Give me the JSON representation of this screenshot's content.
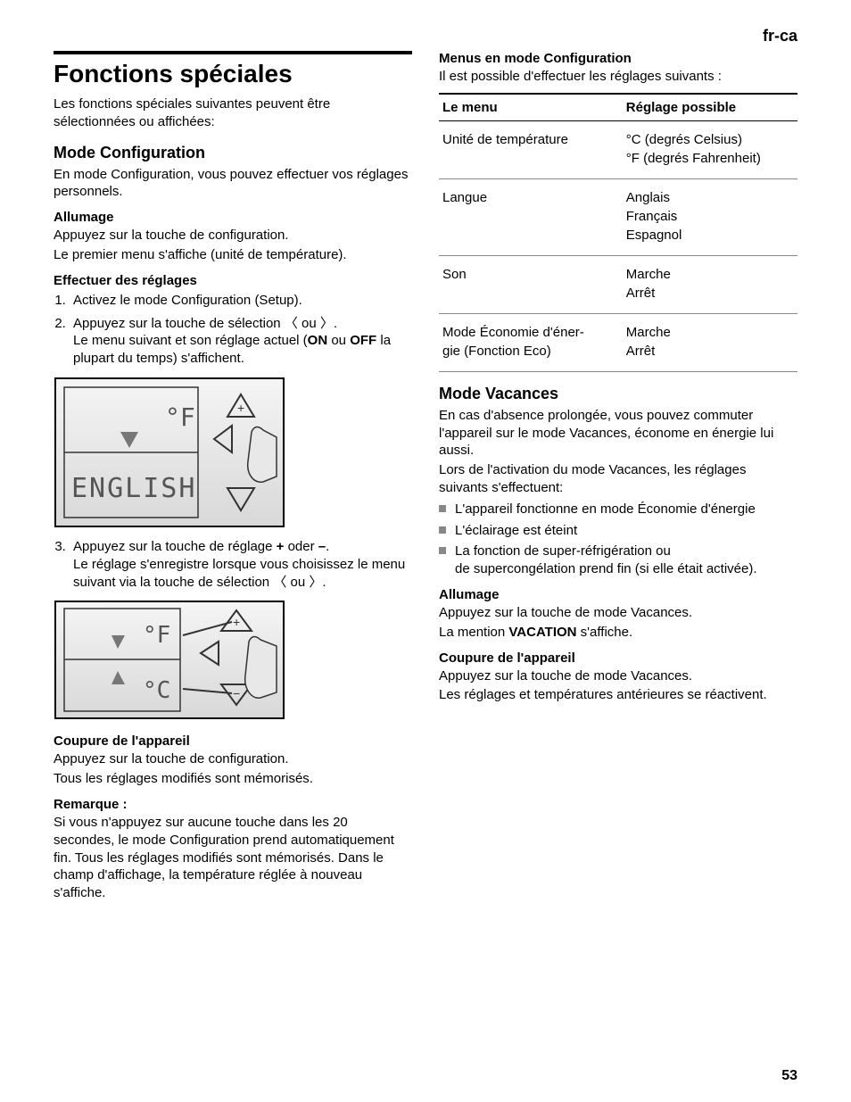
{
  "locale": "fr-ca",
  "pagenum": "53",
  "left": {
    "title": "Fonctions spéciales",
    "intro": "Les fonctions spéciales suivantes peuvent être sélectionnées ou affichées:",
    "mode_config": {
      "heading": "Mode Configuration",
      "text": "En mode Configuration, vous pouvez effectuer vos réglages personnels.",
      "allumage_h": "Allumage",
      "allumage_1": "Appuyez sur la touche de configuration.",
      "allumage_2": "Le premier menu s'affiche (unité de température).",
      "effectuer_h": "Effectuer des réglages",
      "step1": "Activez le mode Configuration (Setup).",
      "step2_a": "Appuyez sur la touche de sélection ",
      "step2_b": " ou ",
      "step2_c": ".",
      "step2_d": "Le menu suivant et son réglage actuel (",
      "step2_on": "ON",
      "step2_or": " ou ",
      "step2_off": "OFF",
      "step2_e": " la plupart du temps) s'affichent.",
      "step3_a": "Appuyez sur la touche de réglage ",
      "step3_plus": "+",
      "step3_oder": " oder ",
      "step3_minus": "–",
      "step3_b": ".",
      "step3_c": "Le réglage s'enregistre lorsque vous choisissez le menu suivant via la touche de sélection ",
      "step3_d": " ou ",
      "step3_e": ".",
      "coupure_h": "Coupure de l'appareil",
      "coupure_1": "Appuyez sur la touche de configuration.",
      "coupure_2": "Tous les réglages modifiés sont mémorisés.",
      "remarque_h": "Remarque :",
      "remarque": "Si vous n'appuyez sur aucune touche dans les 20 secondes, le mode Configuration prend automatiquement fin. Tous les réglages modifiés sont mémorisés. Dans le champ d'affichage, la température réglée à nouveau s'affiche."
    },
    "figure1": {
      "lcd_text": "ENGLISH",
      "small": "°F"
    },
    "figure2": {
      "top": "°F",
      "bottom": "°C"
    }
  },
  "right": {
    "menus_h": "Menus en mode Configuration",
    "menus_text": "Il est possible d'effectuer les réglages suivants :",
    "table": {
      "col_menu": "Le menu",
      "col_setting": "Réglage possible",
      "rows": [
        {
          "menu": "Unité de température",
          "settings": "°C (degrés Celsius)\n°F (degrés Fahrenheit)"
        },
        {
          "menu": "Langue",
          "settings": "Anglais\nFrançais\nEspagnol"
        },
        {
          "menu": "Son",
          "settings": "Marche\nArrêt"
        },
        {
          "menu": "Mode Économie d'éner-\ngie (Fonction Eco)",
          "settings": "Marche\nArrêt"
        }
      ]
    },
    "vacances": {
      "heading": "Mode Vacances",
      "p1": "En cas d'absence prolongée, vous pouvez commuter l'appareil sur le mode Vacances, économe en énergie lui aussi.",
      "p2": "Lors de l'activation du mode Vacances, les réglages suivants s'effectuent:",
      "b1": "L'appareil fonctionne en mode Économie d'énergie",
      "b2": "L'éclairage est éteint",
      "b3a": "La fonction de super-réfrigération ou",
      "b3b": "de supercongélation prend fin (si elle était activée).",
      "allumage_h": "Allumage",
      "allumage_1": "Appuyez sur la touche de mode Vacances.",
      "allumage_2a": "La mention ",
      "allumage_vac": "VACATION",
      "allumage_2b": " s'affiche.",
      "coupure_h": "Coupure de l'appareil",
      "coupure_1": "Appuyez sur la touche de mode Vacances.",
      "coupure_2": "Les réglages et températures antérieures se réactivent."
    }
  }
}
